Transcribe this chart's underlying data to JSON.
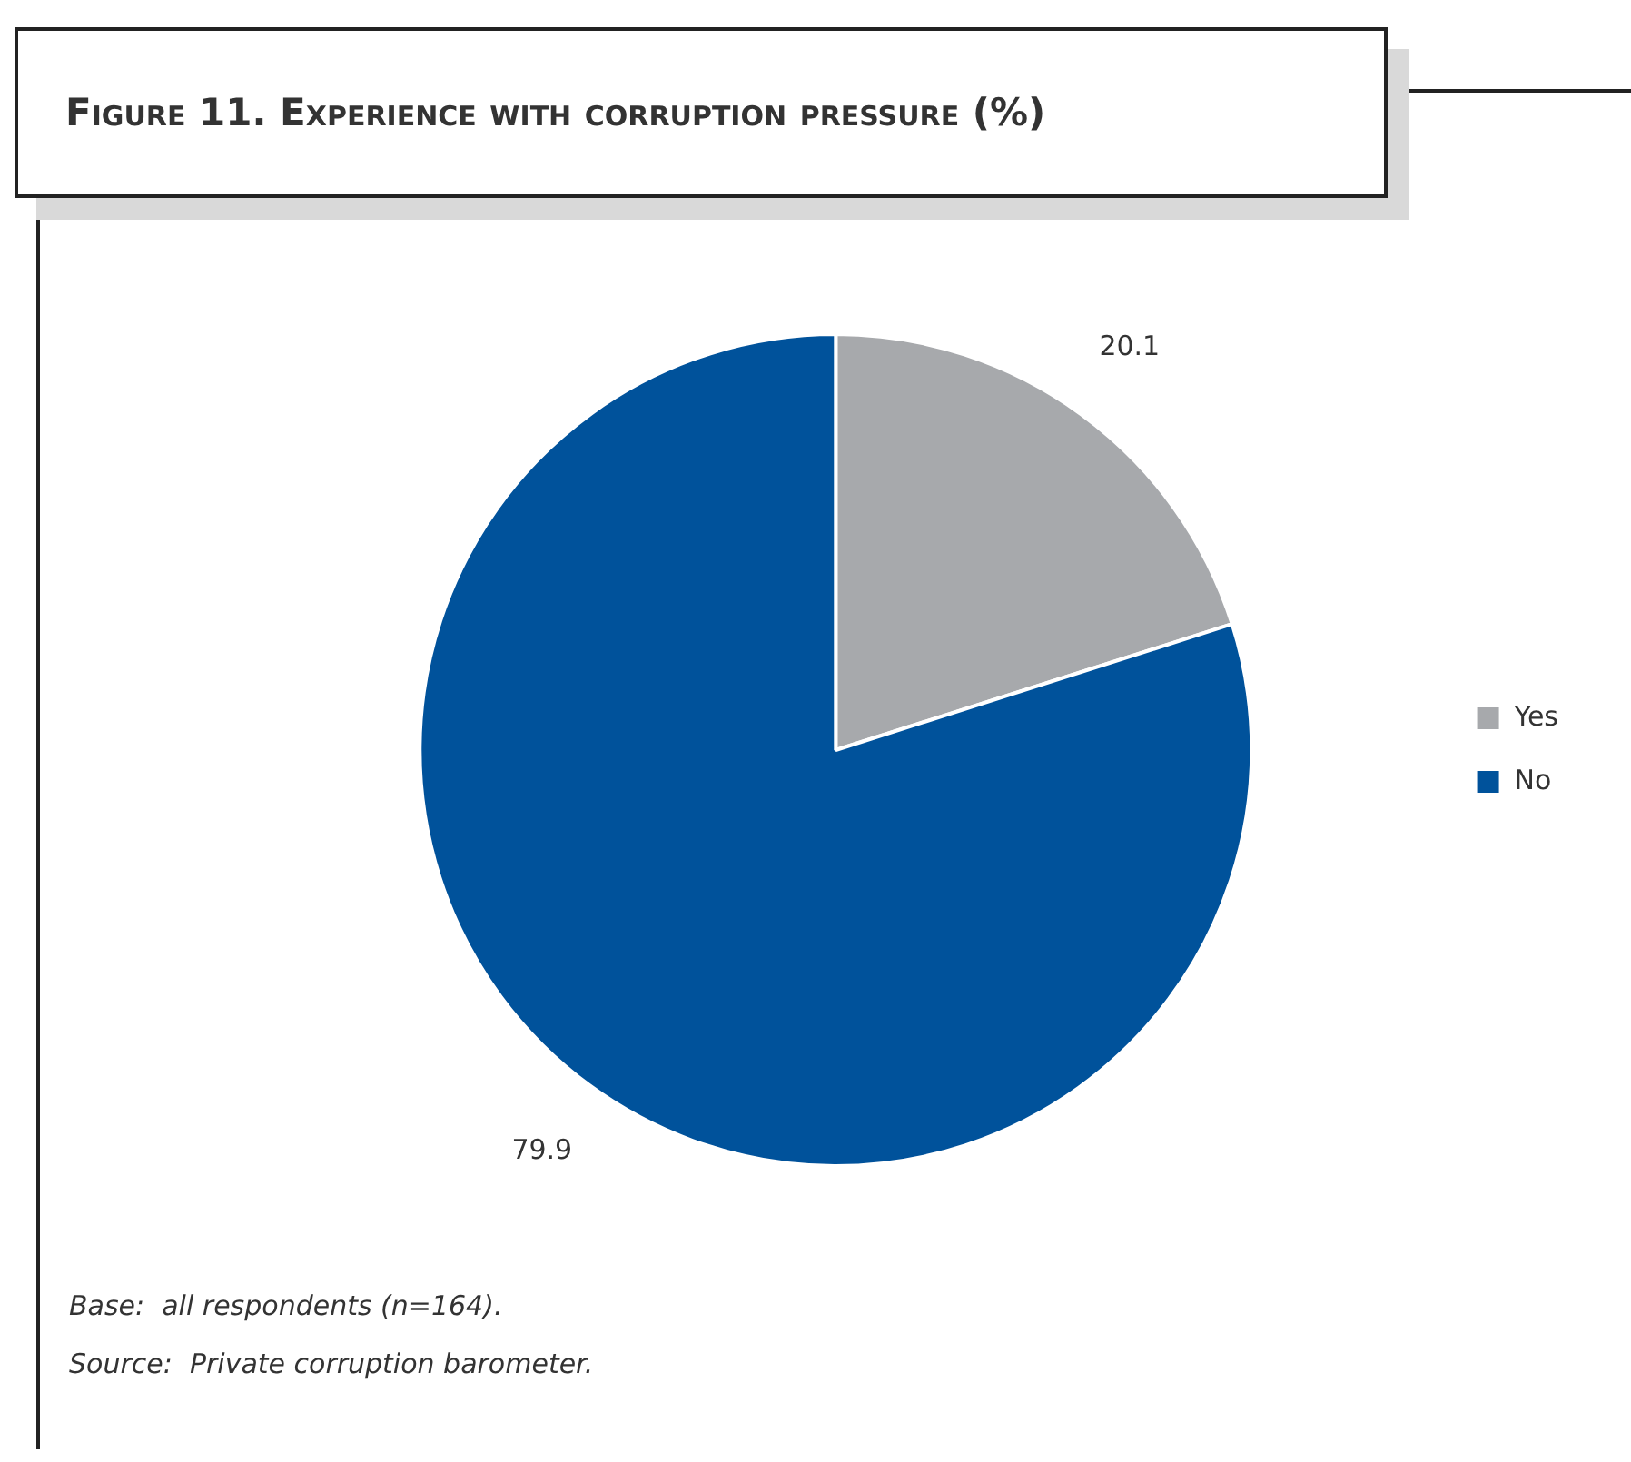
{
  "chart_data": {
    "type": "pie",
    "title": "Figure 11.  Experience with corruption pressure (%)",
    "categories": [
      "Yes",
      "No"
    ],
    "values": [
      20.1,
      79.9
    ],
    "colors": [
      "#a7a9ac",
      "#00529b"
    ],
    "data_labels": true,
    "legend": "right",
    "annotations": [
      "Base:  all respondents (n=164).",
      "Source:  Private corruption barometer."
    ]
  }
}
